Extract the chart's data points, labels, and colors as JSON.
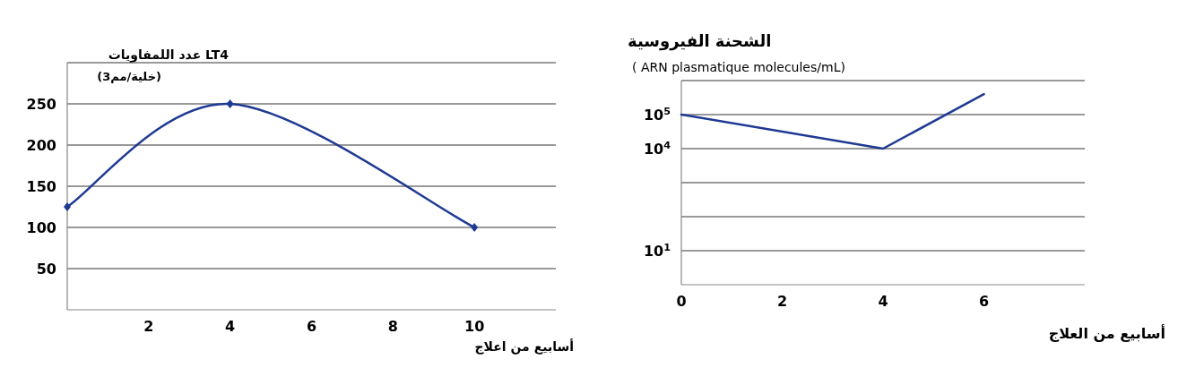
{
  "chart_data": [
    {
      "type": "line",
      "title": "عدد اللمفاويات LT4",
      "subtitle": "(خلية/مم3)",
      "xlabel": "أسابيع من اعلاج",
      "x": [
        0,
        4,
        10
      ],
      "values": [
        125,
        250,
        100
      ],
      "color": "#1f3a93",
      "marker": "diamond",
      "line_style": "solid",
      "grid": "y",
      "xlim": [
        0,
        12
      ],
      "ylim": [
        0,
        300
      ],
      "xticks": [
        2,
        4,
        6,
        8,
        10
      ],
      "yticks": [
        50,
        100,
        150,
        200,
        250,
        {
          "value": 300,
          "label": null
        }
      ]
    },
    {
      "type": "line",
      "title": "الشحنة الفيروسية",
      "subtitle": "( ARN plasmatique molecules/mL)",
      "xlabel": "أسابيع من العلاج",
      "x": [
        0,
        4,
        6
      ],
      "values": [
        100000,
        10000,
        400000
      ],
      "color": "#1f3a93",
      "marker": "none",
      "line_style": "solid",
      "grid": "y",
      "log": "y",
      "xlim": [
        0,
        8
      ],
      "ylim": [
        1,
        1000000
      ],
      "xticks": [
        0,
        2,
        4,
        6
      ],
      "yticks": [
        {
          "value": 10,
          "label": "10$^{1}$"
        },
        {
          "value": 100,
          "label": null
        },
        {
          "value": 1000,
          "label": null
        },
        {
          "value": 10000,
          "label": "10$^{4}$"
        },
        {
          "value": 100000,
          "label": "10$^{5}$"
        },
        {
          "value": 1000000,
          "label": null
        }
      ]
    }
  ]
}
